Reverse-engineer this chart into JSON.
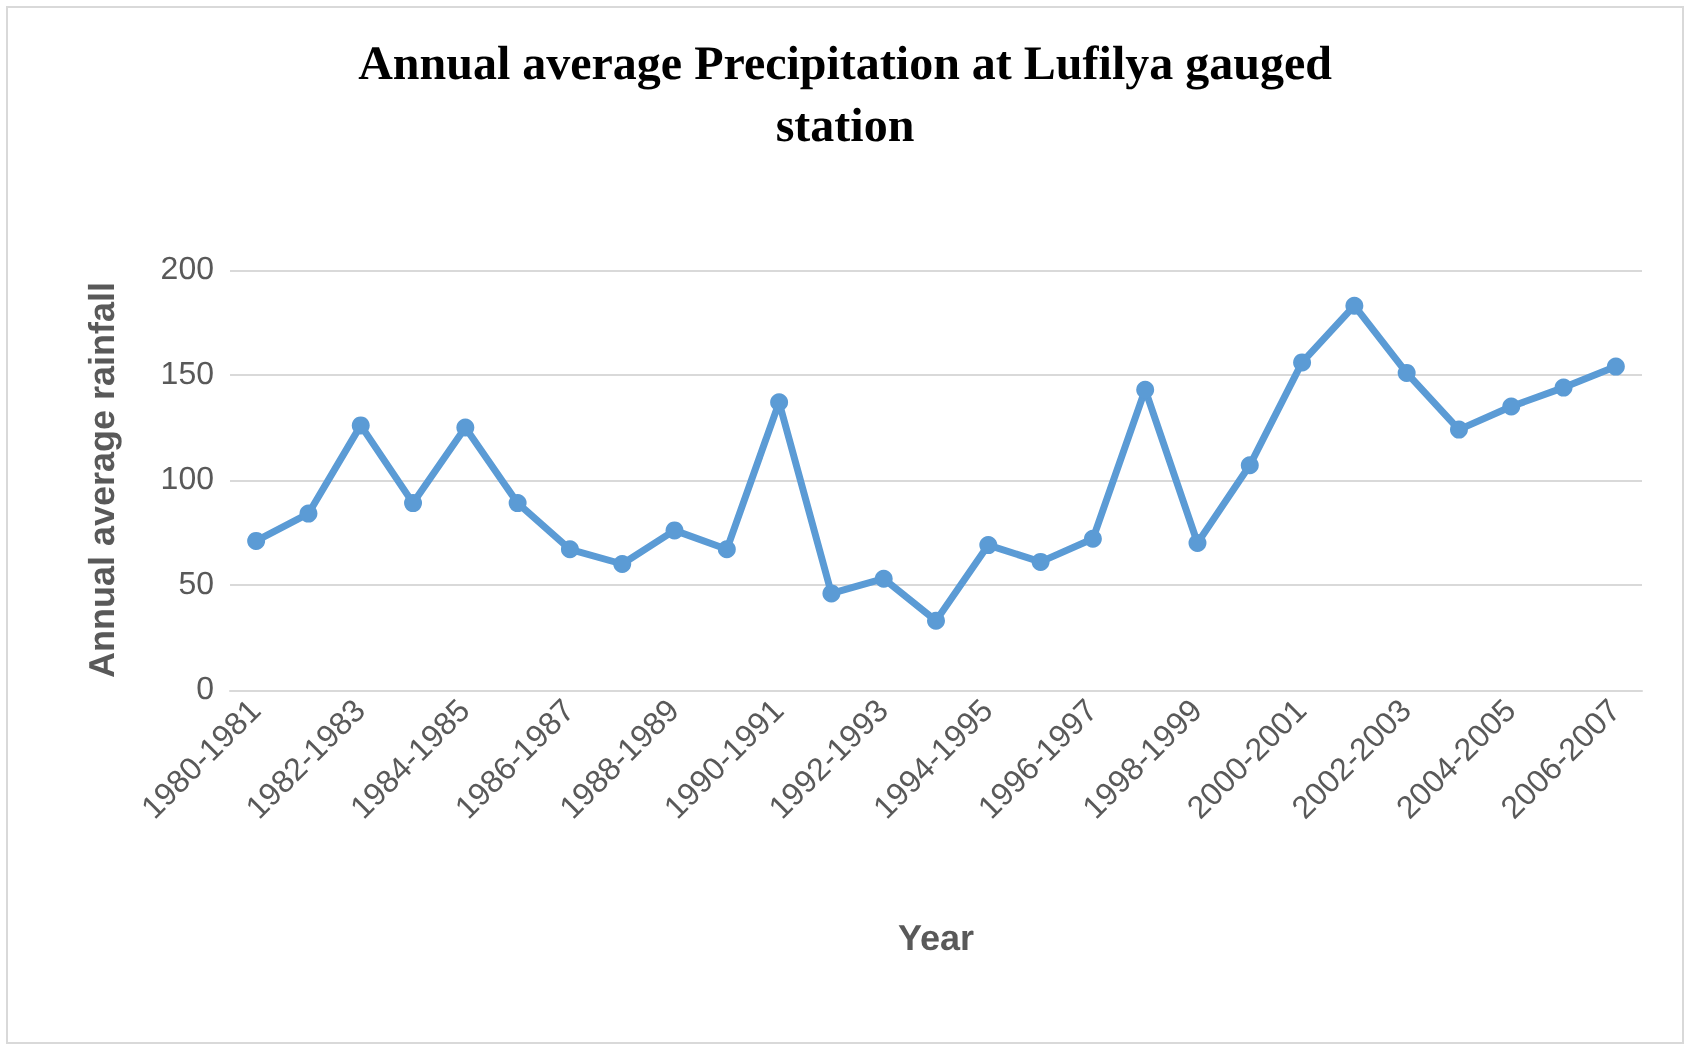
{
  "chart_data": {
    "type": "line",
    "title": "Annual average Precipitation at Lufilya gauged\nstation",
    "xlabel": "Year",
    "ylabel": "Annual average rainfall",
    "categories": [
      "1980-1981",
      null,
      "1982-1983",
      null,
      "1984-1985",
      null,
      "1986-1987",
      null,
      "1988-1989",
      null,
      "1990-1991",
      null,
      "1992-1993",
      null,
      "1994-1995",
      null,
      "1996-1997",
      null,
      "1998-1999",
      null,
      "2000-2001",
      null,
      "2002-2003",
      null,
      "2004-2005",
      null,
      "2006-2007"
    ],
    "series": [
      {
        "color": "#5b9bd5",
        "values": [
          71,
          84,
          126,
          89,
          125,
          89,
          67,
          60,
          76,
          67,
          137,
          46,
          53,
          33,
          69,
          61,
          72,
          143,
          70,
          107,
          156,
          183,
          151,
          124,
          135,
          144,
          154
        ]
      }
    ],
    "ylim": [
      0,
      200
    ],
    "yticks": [
      0,
      50,
      100,
      150,
      200
    ],
    "grid": "y",
    "marker": "circle",
    "line_style": "solid"
  }
}
